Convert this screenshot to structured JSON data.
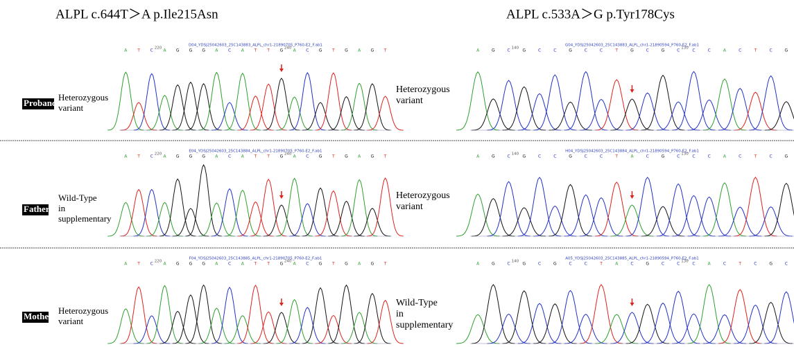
{
  "titles": {
    "left": "ALPL c.644T＞A p.Ile215Asn",
    "right": "ALPL c.533A＞G p.Tyr178Cys"
  },
  "rows": [
    {
      "name": "Proband",
      "left_status": [
        "Heterozygous",
        "variant"
      ],
      "right_status": [
        "Heterozygous",
        "variant"
      ],
      "left_trace": {
        "file": "D04_YDSJ25042603_25C143883_ALPL_chr1-21890705_P760-E2_F.ab1",
        "bases": [
          "A",
          "T",
          "C",
          "A",
          "G",
          "G",
          "G",
          "A",
          "C",
          "A",
          "T",
          "T",
          "G",
          "A",
          "C",
          "G",
          "T",
          "G",
          "A",
          "G",
          "T"
        ],
        "positions": [
          "220",
          "240"
        ]
      },
      "right_trace": {
        "file": "G04_YDSJ25042603_25C143883_ALPL_chr1-21890594_P760-E2_F.ab1",
        "bases": [
          "A",
          "G",
          "C",
          "G",
          "C",
          "C",
          "G",
          "C",
          "C",
          "T",
          "G",
          "C",
          "G",
          "C",
          "C",
          "C",
          "A",
          "C",
          "T",
          "C",
          "G"
        ],
        "positions": [
          "140",
          "130"
        ]
      }
    },
    {
      "name": "Father",
      "left_status": [
        "Wild-Type",
        "in",
        "supplementary"
      ],
      "right_status": [
        "Heterozygous",
        "variant"
      ],
      "left_trace": {
        "file": "E04_YDSJ25042603_25C143884_ALPL_chr1-21890705_P760-E2_F.ab1",
        "bases": [
          "A",
          "T",
          "C",
          "A",
          "G",
          "G",
          "G",
          "A",
          "C",
          "A",
          "T",
          "T",
          "G",
          "A",
          "C",
          "G",
          "T",
          "G",
          "A",
          "G",
          "T"
        ],
        "positions": [
          "220",
          "240"
        ]
      },
      "right_trace": {
        "file": "H04_YDSJ25042603_25C143884_ALPL_chr1-21890594_P760-E2_F.ab1",
        "bases": [
          "A",
          "G",
          "C",
          "G",
          "C",
          "C",
          "G",
          "C",
          "C",
          "T",
          "A",
          "C",
          "G",
          "C",
          "C",
          "C",
          "A",
          "C",
          "T",
          "C",
          "G"
        ],
        "positions": [
          "140",
          "130"
        ]
      }
    },
    {
      "name": "Mother",
      "left_status": [
        "Heterozygous",
        "variant"
      ],
      "right_status": [
        "Wild-Type",
        "in",
        "supplementary"
      ],
      "left_trace": {
        "file": "F04_YDSJ25042603_25C143885_ALPL_chr1-21890705_P760-E2_F.ab1",
        "bases": [
          "A",
          "T",
          "C",
          "A",
          "G",
          "G",
          "G",
          "A",
          "C",
          "A",
          "T",
          "T",
          "G",
          "A",
          "C",
          "G",
          "T",
          "G",
          "A",
          "G",
          "T"
        ],
        "positions": [
          "220",
          "240"
        ]
      },
      "right_trace": {
        "file": "A05_YDSJ25042603_25C143885_ALPL_chr1-21890594_P760-E2_F.ab1",
        "bases": [
          "A",
          "G",
          "C",
          "G",
          "C",
          "G",
          "C",
          "C",
          "T",
          "A",
          "C",
          "G",
          "C",
          "C",
          "C",
          "A",
          "C",
          "T",
          "C",
          "G",
          "C"
        ],
        "positions": [
          "140",
          "130"
        ]
      }
    }
  ]
}
